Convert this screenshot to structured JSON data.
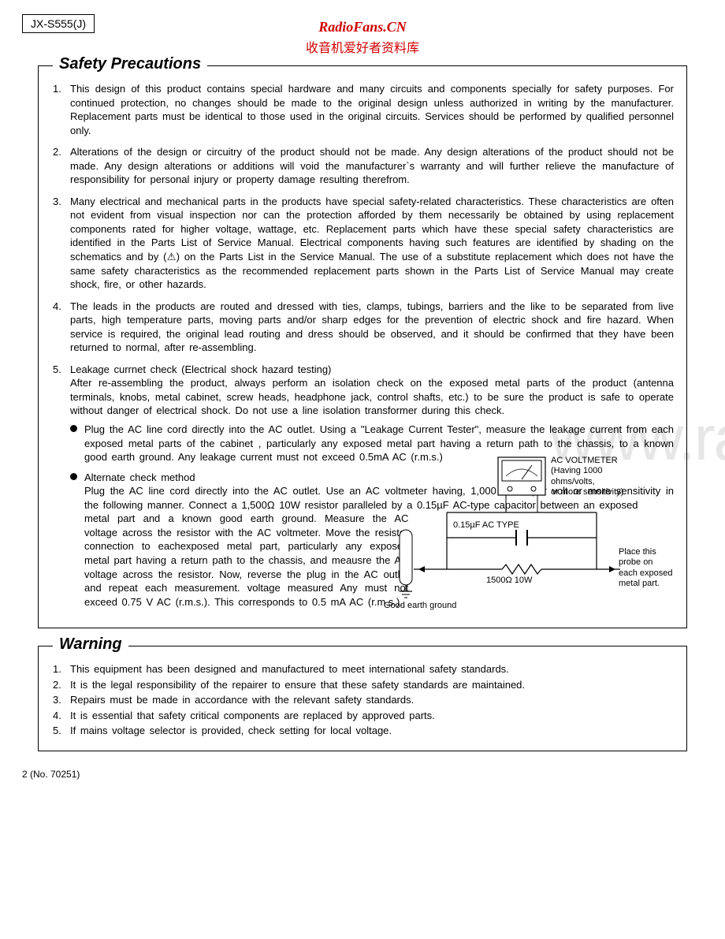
{
  "header": {
    "product_id": "JX-S555(J)",
    "site_title": "RadioFans.CN",
    "site_sub": "收音机爱好者资料库"
  },
  "watermark": "www.ra",
  "safety": {
    "title": "Safety Precautions",
    "items": [
      "This design of this product contains special hardware and many circuits and components specially for safety purposes. For continued protection, no changes should be made to the original design unless authorized in writing by the manufacturer. Replacement parts must be identical to those used in the original circuits. Services should be performed by qualified personnel only.",
      "Alterations of the design or circuitry of the product should not be made. Any design alterations of the product should not be made. Any design alterations or additions will void the manufacturer`s warranty and will further relieve the manufacture of responsibility for personal injury or property damage resulting therefrom.",
      "Many electrical and mechanical parts in the products have special safety-related characteristics. These characteristics are often not evident from visual inspection nor can the protection afforded by them necessarily be obtained by using replacement components rated for higher voltage, wattage, etc. Replacement parts which have these special safety characteristics are identified in the Parts List of Service Manual. Electrical components having such features are identified by shading on the schematics and by (⚠) on the Parts List in the Service Manual. The use of a substitute replacement which does not have the same safety characteristics as the recommended replacement parts shown in the Parts List of Service Manual may create shock, fire, or other hazards.",
      "The leads in the products are routed and dressed with ties, clamps, tubings, barriers and the like to be separated from live parts, high temperature parts, moving parts and/or sharp edges for the prevention of electric shock and fire hazard. When service is required, the original lead routing and dress should be observed, and it should be confirmed that they have been returned to normal, after re-assembling."
    ],
    "item5_head": "Leakage currnet check (Electrical shock hazard testing)",
    "item5_body": "After re-assembling the product, always perform an isolation check on the exposed metal parts of the product (antenna terminals, knobs, metal cabinet, screw heads, headphone jack, control shafts, etc.) to be sure the product is safe to operate without danger of electrical shock. Do not use a line isolation transformer during this check.",
    "bullets": [
      "Plug the AC line cord directly into the AC outlet. Using a \"Leakage Current Tester\", measure the leakage current from each exposed metal parts of the cabinet , particularly any exposed metal part having a return path to the chassis, to a known good earth ground. Any leakage current must not exceed 0.5mA AC (r.m.s.)"
    ],
    "bullet2_head": "Alternate check method",
    "bullet2_body_full": "Plug the AC line cord directly into the AC outlet. Use an AC voltmeter having, 1,000 ohms per volt or more sensitivity in the following manner. Connect a 1,500Ω 10W resistor paralleled by a 0.15µF AC-type capacitor between an exposed",
    "bullet2_narrow": "metal part and a known good earth ground. Measure the AC voltage across the resistor with the AC voltmeter. Move the resistor connection to eachexposed metal part, particularly any exposed metal part having a return path to the chassis, and meausre the AC voltage across the resistor. Now, reverse the plug in the AC outlet and repeat each measurement. voltage measured Any must not exceed 0.75 V AC (r.m.s.). This corresponds to 0.5 mA AC (r.m.s.)."
  },
  "diagram": {
    "voltmeter_label": "AC VOLTMETER\n(Having 1000\nohms/volts,\nor more sensitivity)",
    "cap_label": "0.15µF  AC TYPE",
    "resistor_label": "1500Ω  10W",
    "ground_label": "Good earth ground",
    "probe_label": "Place this\nprobe on\neach exposed\nmetal part.",
    "colors": {
      "line": "#000000",
      "bg": "#ffffff"
    }
  },
  "warning": {
    "title": "Warning",
    "items": [
      "This equipment has been designed and manufactured to meet international safety standards.",
      "It is the legal responsibility of the repairer to ensure that these safety standards are maintained.",
      "Repairs must be made in accordance with the relevant safety standards.",
      "It is essential that safety critical components are replaced by approved parts.",
      "If mains voltage selector is provided, check setting for local voltage."
    ]
  },
  "footer": {
    "page": "2 (No. 70251)"
  }
}
